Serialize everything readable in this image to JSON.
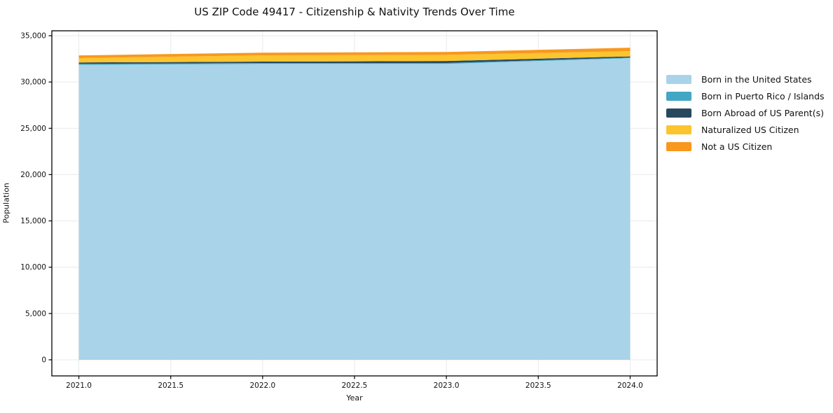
{
  "title": "US ZIP Code 49417 - Citizenship & Nativity Trends Over Time",
  "chart_data": {
    "type": "area",
    "stacked": true,
    "title": "US ZIP Code 49417 - Citizenship & Nativity Trends Over Time",
    "xlabel": "Year",
    "ylabel": "Population",
    "x": [
      2021,
      2022,
      2023,
      2024
    ],
    "series": [
      {
        "name": "Born in the United States",
        "color": "#a9d3e8",
        "values": [
          31850,
          31960,
          31960,
          32580
        ]
      },
      {
        "name": "Born in Puerto Rico / Islands",
        "color": "#42a7c5",
        "values": [
          110,
          90,
          90,
          75
        ]
      },
      {
        "name": "Born Abroad of US Parent(s)",
        "color": "#27495f",
        "values": [
          150,
          150,
          220,
          110
        ]
      },
      {
        "name": "Naturalized US Citizen",
        "color": "#fcc42e",
        "values": [
          470,
          680,
          660,
          565
        ]
      },
      {
        "name": "Not a US Citizen",
        "color": "#f8981d",
        "values": [
          290,
          290,
          310,
          375
        ]
      }
    ],
    "xticks": [
      2021.0,
      2021.5,
      2022.0,
      2022.5,
      2023.0,
      2023.5,
      2024.0
    ],
    "yticks": [
      0,
      5000,
      10000,
      15000,
      20000,
      25000,
      30000,
      35000
    ],
    "xlim": [
      2020.853,
      2024.147
    ],
    "ylim": [
      -1740,
      35530
    ],
    "grid": true,
    "grid_color": "#e9e9e9",
    "spine_color": "#000000",
    "legend_position": "right"
  }
}
